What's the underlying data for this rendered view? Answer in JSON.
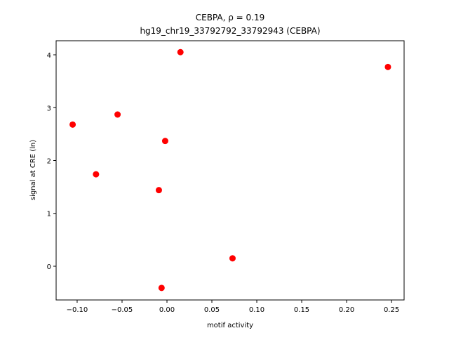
{
  "chart_data": {
    "type": "scatter",
    "title": "CEBPA, ρ = 0.19",
    "subtitle": "hg19_chr19_33792792_33792943 (CEBPA)",
    "x_label": "motif activity",
    "y_label": "signal at CRE (ln)",
    "color": "#ff0000",
    "x": [
      -0.105,
      -0.079,
      -0.055,
      -0.002,
      -0.009,
      -0.006,
      0.015,
      0.073,
      0.246
    ],
    "y": [
      2.68,
      1.74,
      2.87,
      2.37,
      1.44,
      -0.41,
      4.05,
      0.15,
      3.77
    ],
    "xlim": [
      -0.1234,
      0.264
    ],
    "ylim": [
      -0.638,
      4.266
    ],
    "xticks": [
      {
        "value": -0.1,
        "label": "−0.10"
      },
      {
        "value": -0.05,
        "label": "−0.05"
      },
      {
        "value": 0,
        "label": "0.00"
      },
      {
        "value": 0.05,
        "label": "0.05"
      },
      {
        "value": 0.1,
        "label": "0.10"
      },
      {
        "value": 0.15,
        "label": "0.15"
      },
      {
        "value": 0.2,
        "label": "0.20"
      },
      {
        "value": 0.25,
        "label": "0.25"
      }
    ],
    "yticks": [
      0,
      1,
      2,
      3,
      4
    ]
  }
}
